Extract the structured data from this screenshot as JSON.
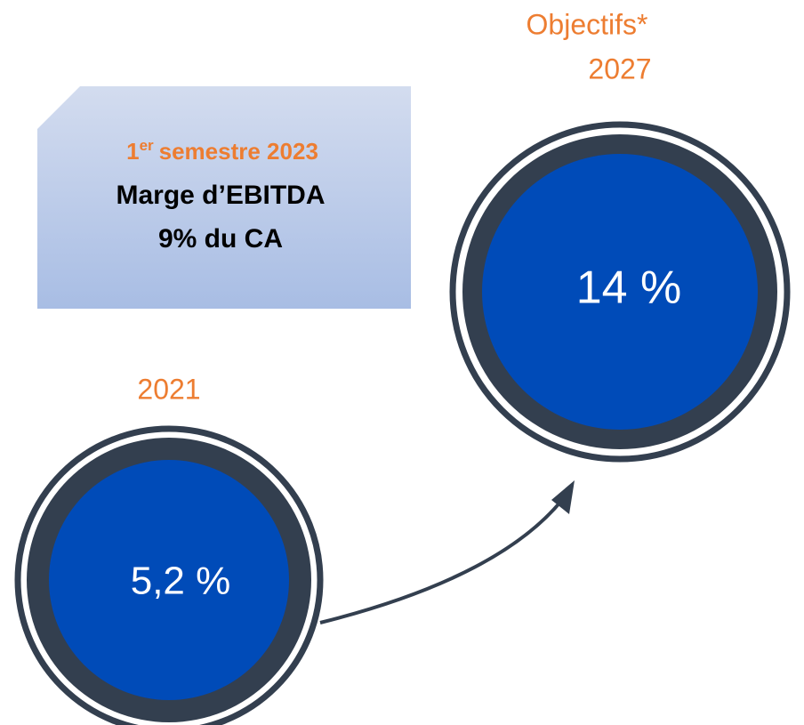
{
  "callout": {
    "period_number": "1",
    "period_suffix": "er",
    "period_rest": "semestre 2023",
    "title": "Marge d’EBITDA",
    "value": "9% du CA"
  },
  "past": {
    "year": "2021",
    "value": "5,2 %"
  },
  "target": {
    "label": "Objectifs*",
    "year": "2027",
    "value": "14 %"
  }
}
